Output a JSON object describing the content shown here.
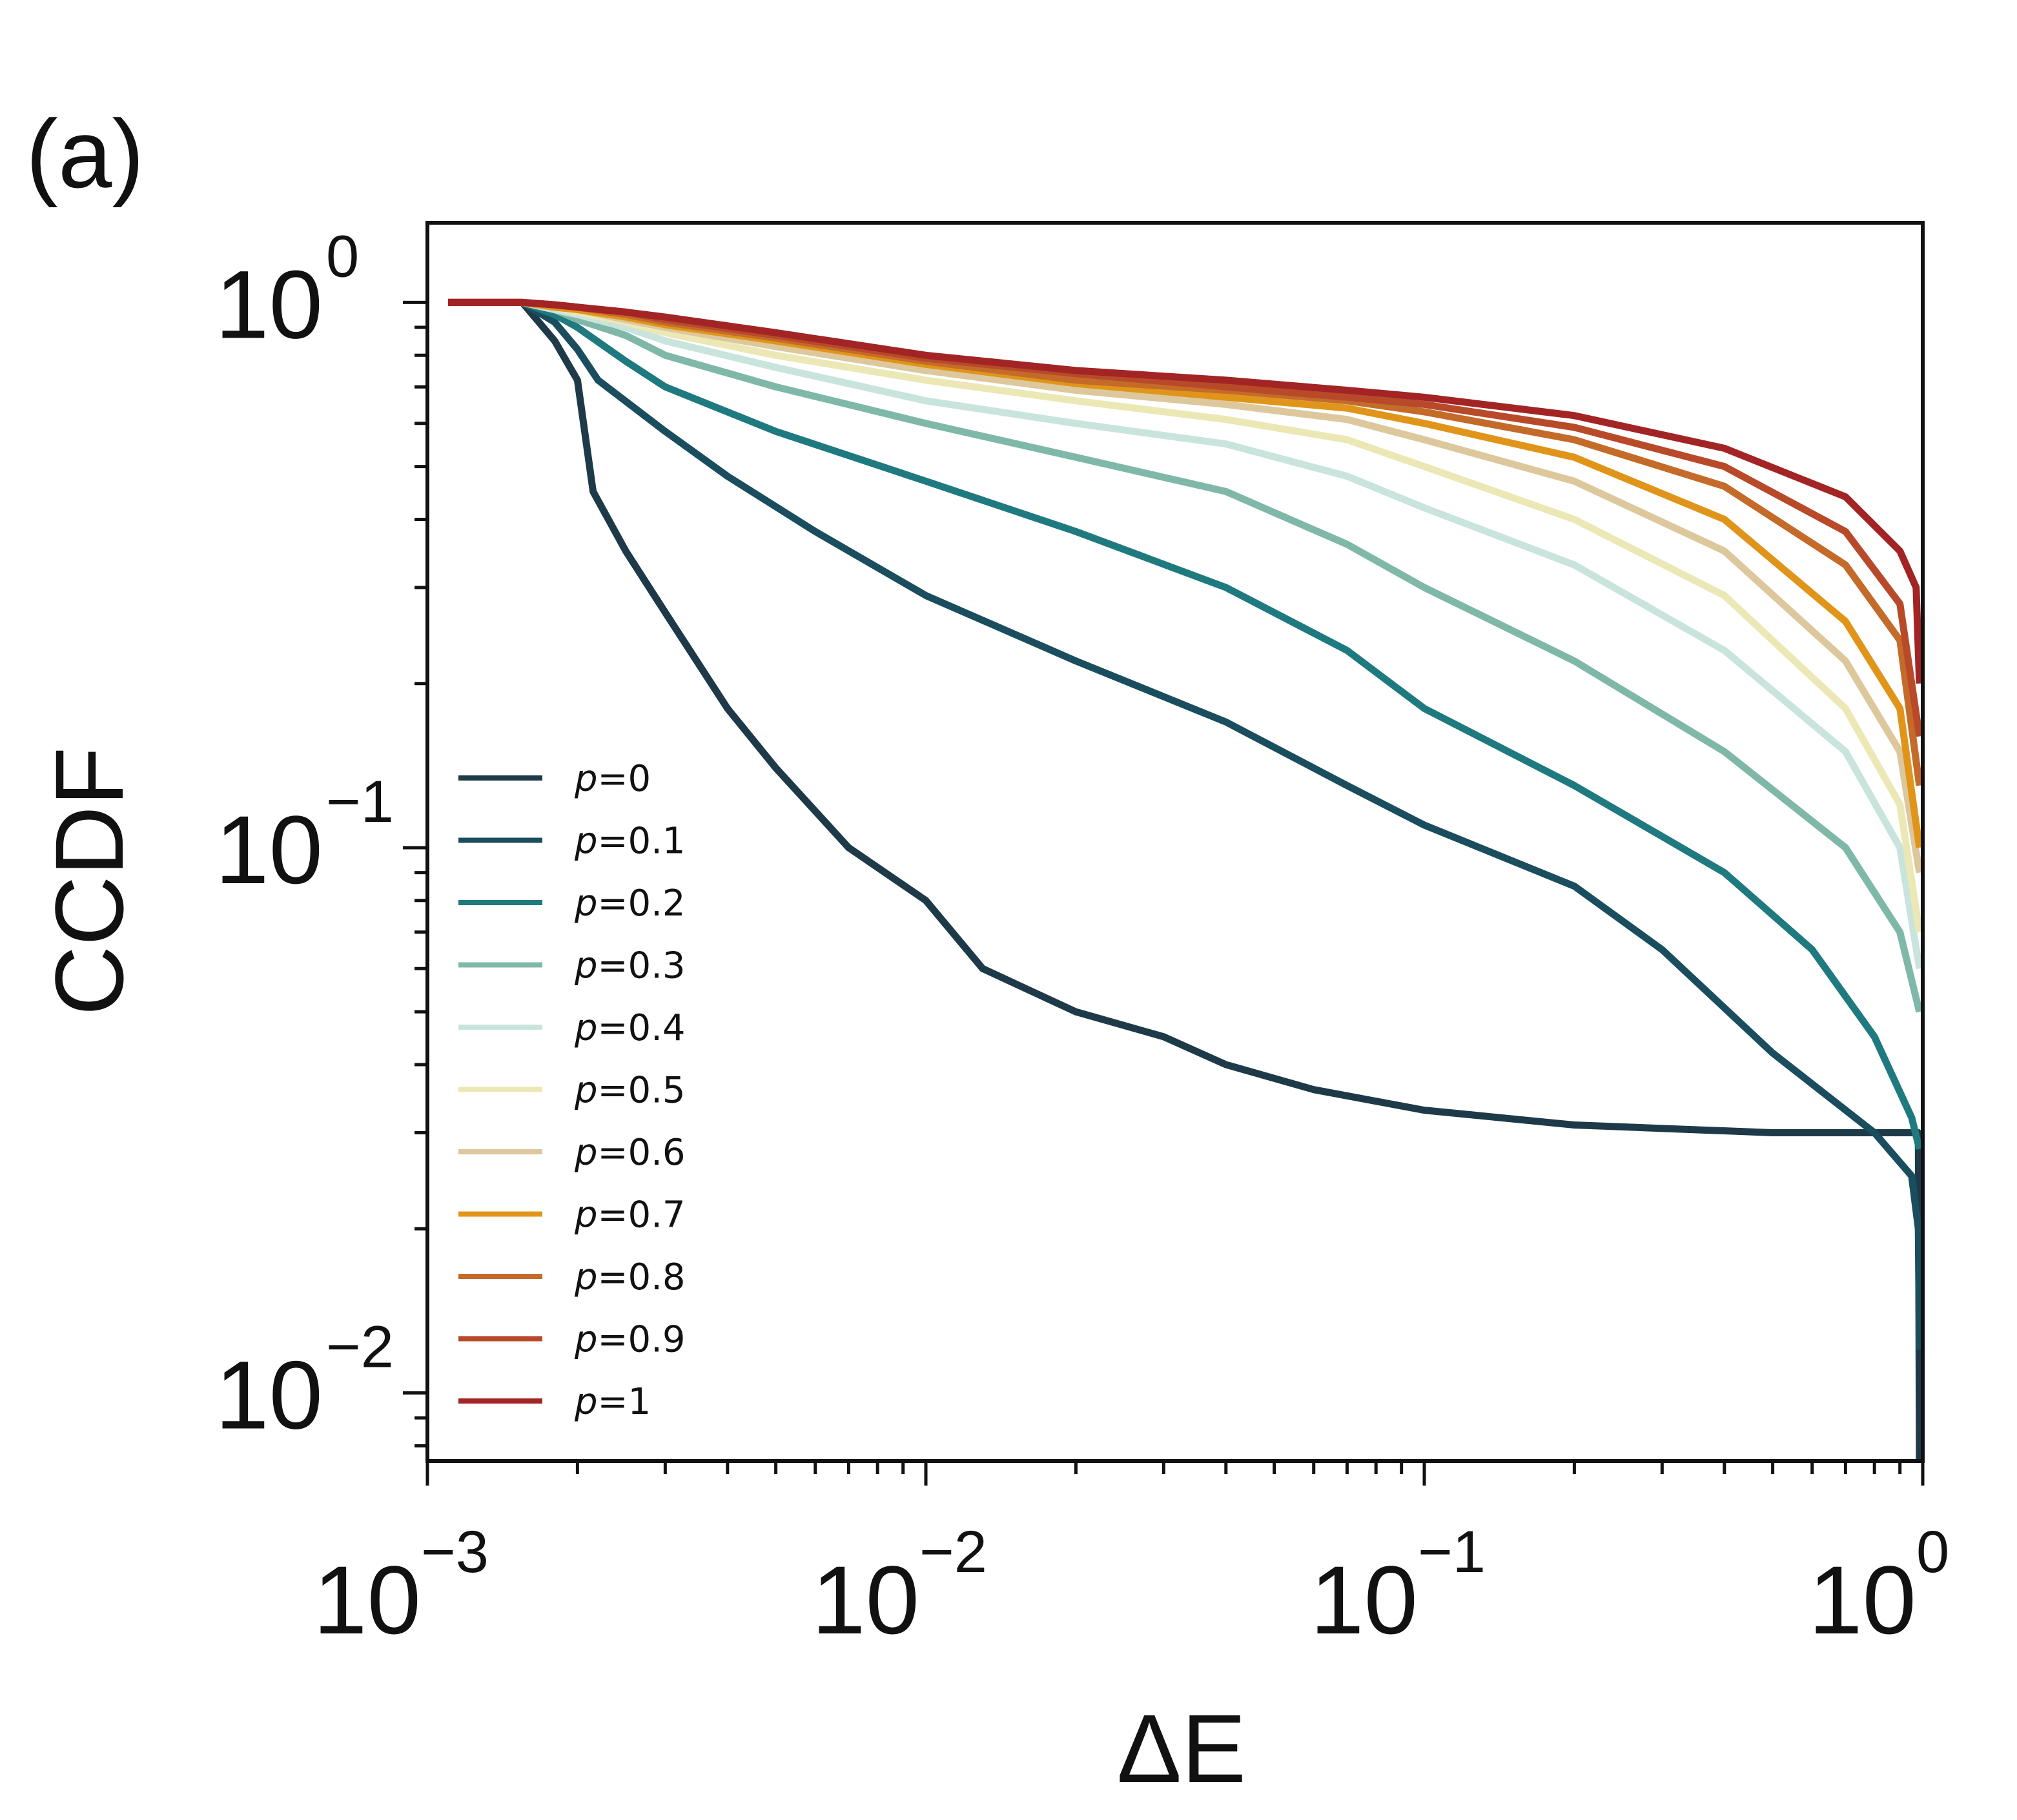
{
  "panel_label": "(a)",
  "chart_data": {
    "type": "line",
    "xlabel": "ΔE",
    "ylabel": "CCDF",
    "xscale": "log",
    "yscale": "log",
    "xlim": [
      0.001,
      1.0
    ],
    "ylim": [
      0.0075,
      1.4
    ],
    "legend_position": "lower-left",
    "grid": false,
    "x_ticks": [
      {
        "base": "10",
        "exp": "−3",
        "value": 0.001
      },
      {
        "base": "10",
        "exp": "−2",
        "value": 0.01
      },
      {
        "base": "10",
        "exp": "−1",
        "value": 0.1
      },
      {
        "base": "10",
        "exp": "0",
        "value": 1
      }
    ],
    "y_ticks": [
      {
        "base": "10",
        "exp": "0",
        "value": 1
      },
      {
        "base": "10",
        "exp": "−1",
        "value": 0.1
      },
      {
        "base": "10",
        "exp": "−2",
        "value": 0.01
      }
    ],
    "series": [
      {
        "name": "p=0",
        "p_label": "p",
        "p_value": "=0",
        "color": "#1e3a48",
        "points": [
          [
            0.0011,
            1.0
          ],
          [
            0.00155,
            1.0
          ],
          [
            0.0018,
            0.85
          ],
          [
            0.002,
            0.72
          ],
          [
            0.00215,
            0.45
          ],
          [
            0.0025,
            0.35
          ],
          [
            0.003,
            0.27
          ],
          [
            0.004,
            0.18
          ],
          [
            0.005,
            0.14
          ],
          [
            0.007,
            0.1
          ],
          [
            0.01,
            0.08
          ],
          [
            0.013,
            0.06
          ],
          [
            0.02,
            0.05
          ],
          [
            0.03,
            0.045
          ],
          [
            0.04,
            0.04
          ],
          [
            0.06,
            0.036
          ],
          [
            0.1,
            0.033
          ],
          [
            0.2,
            0.031
          ],
          [
            0.5,
            0.03
          ],
          [
            0.98,
            0.03
          ],
          [
            0.985,
            0.0075
          ]
        ]
      },
      {
        "name": "p=0.1",
        "p_label": "p",
        "p_value": "=0.1",
        "color": "#1a4e5e",
        "points": [
          [
            0.0011,
            1.0
          ],
          [
            0.00155,
            1.0
          ],
          [
            0.0018,
            0.92
          ],
          [
            0.002,
            0.82
          ],
          [
            0.0022,
            0.72
          ],
          [
            0.003,
            0.58
          ],
          [
            0.004,
            0.48
          ],
          [
            0.006,
            0.38
          ],
          [
            0.01,
            0.29
          ],
          [
            0.02,
            0.22
          ],
          [
            0.04,
            0.17
          ],
          [
            0.07,
            0.13
          ],
          [
            0.1,
            0.11
          ],
          [
            0.2,
            0.085
          ],
          [
            0.3,
            0.065
          ],
          [
            0.5,
            0.042
          ],
          [
            0.8,
            0.03
          ],
          [
            0.95,
            0.025
          ],
          [
            0.98,
            0.02
          ],
          [
            0.985,
            0.012
          ]
        ]
      },
      {
        "name": "p=0.2",
        "p_label": "p",
        "p_value": "=0.2",
        "color": "#1f7a80",
        "points": [
          [
            0.0011,
            1.0
          ],
          [
            0.00155,
            1.0
          ],
          [
            0.0018,
            0.95
          ],
          [
            0.002,
            0.9
          ],
          [
            0.0025,
            0.78
          ],
          [
            0.003,
            0.7
          ],
          [
            0.005,
            0.58
          ],
          [
            0.01,
            0.47
          ],
          [
            0.02,
            0.38
          ],
          [
            0.04,
            0.3
          ],
          [
            0.07,
            0.23
          ],
          [
            0.1,
            0.18
          ],
          [
            0.2,
            0.13
          ],
          [
            0.4,
            0.09
          ],
          [
            0.6,
            0.065
          ],
          [
            0.8,
            0.045
          ],
          [
            0.95,
            0.032
          ],
          [
            0.985,
            0.028
          ]
        ]
      },
      {
        "name": "p=0.3",
        "p_label": "p",
        "p_value": "=0.3",
        "color": "#7fb8a8",
        "points": [
          [
            0.0011,
            1.0
          ],
          [
            0.00155,
            1.0
          ],
          [
            0.0018,
            0.97
          ],
          [
            0.002,
            0.93
          ],
          [
            0.0025,
            0.87
          ],
          [
            0.003,
            0.8
          ],
          [
            0.005,
            0.7
          ],
          [
            0.01,
            0.6
          ],
          [
            0.02,
            0.52
          ],
          [
            0.04,
            0.45
          ],
          [
            0.07,
            0.36
          ],
          [
            0.1,
            0.3
          ],
          [
            0.2,
            0.22
          ],
          [
            0.4,
            0.15
          ],
          [
            0.7,
            0.1
          ],
          [
            0.9,
            0.07
          ],
          [
            0.985,
            0.05
          ]
        ]
      },
      {
        "name": "p=0.4",
        "p_label": "p",
        "p_value": "=0.4",
        "color": "#c9e4dd",
        "points": [
          [
            0.0011,
            1.0
          ],
          [
            0.00155,
            1.0
          ],
          [
            0.0018,
            0.97
          ],
          [
            0.002,
            0.95
          ],
          [
            0.0025,
            0.9
          ],
          [
            0.003,
            0.85
          ],
          [
            0.005,
            0.76
          ],
          [
            0.01,
            0.66
          ],
          [
            0.02,
            0.6
          ],
          [
            0.04,
            0.55
          ],
          [
            0.07,
            0.48
          ],
          [
            0.1,
            0.42
          ],
          [
            0.2,
            0.33
          ],
          [
            0.4,
            0.23
          ],
          [
            0.7,
            0.15
          ],
          [
            0.9,
            0.1
          ],
          [
            0.985,
            0.06
          ]
        ]
      },
      {
        "name": "p=0.5",
        "p_label": "p",
        "p_value": "=0.5",
        "color": "#ece8b5",
        "points": [
          [
            0.0011,
            1.0
          ],
          [
            0.00155,
            1.0
          ],
          [
            0.0018,
            0.98
          ],
          [
            0.002,
            0.96
          ],
          [
            0.0025,
            0.92
          ],
          [
            0.003,
            0.88
          ],
          [
            0.005,
            0.8
          ],
          [
            0.01,
            0.72
          ],
          [
            0.02,
            0.66
          ],
          [
            0.04,
            0.61
          ],
          [
            0.07,
            0.56
          ],
          [
            0.1,
            0.5
          ],
          [
            0.2,
            0.4
          ],
          [
            0.4,
            0.29
          ],
          [
            0.7,
            0.18
          ],
          [
            0.9,
            0.12
          ],
          [
            0.985,
            0.07
          ]
        ]
      },
      {
        "name": "p=0.6",
        "p_label": "p",
        "p_value": "=0.6",
        "color": "#dcc89c",
        "points": [
          [
            0.0011,
            1.0
          ],
          [
            0.00155,
            1.0
          ],
          [
            0.0018,
            0.98
          ],
          [
            0.002,
            0.97
          ],
          [
            0.0025,
            0.93
          ],
          [
            0.003,
            0.9
          ],
          [
            0.005,
            0.83
          ],
          [
            0.01,
            0.75
          ],
          [
            0.02,
            0.69
          ],
          [
            0.04,
            0.65
          ],
          [
            0.07,
            0.61
          ],
          [
            0.1,
            0.56
          ],
          [
            0.2,
            0.47
          ],
          [
            0.4,
            0.35
          ],
          [
            0.7,
            0.22
          ],
          [
            0.9,
            0.15
          ],
          [
            0.985,
            0.09
          ]
        ]
      },
      {
        "name": "p=0.7",
        "p_label": "p",
        "p_value": "=0.7",
        "color": "#e0951a",
        "points": [
          [
            0.0011,
            1.0
          ],
          [
            0.00155,
            1.0
          ],
          [
            0.0018,
            0.98
          ],
          [
            0.002,
            0.97
          ],
          [
            0.0025,
            0.94
          ],
          [
            0.003,
            0.91
          ],
          [
            0.005,
            0.85
          ],
          [
            0.01,
            0.77
          ],
          [
            0.02,
            0.71
          ],
          [
            0.04,
            0.67
          ],
          [
            0.07,
            0.64
          ],
          [
            0.1,
            0.6
          ],
          [
            0.2,
            0.52
          ],
          [
            0.4,
            0.4
          ],
          [
            0.7,
            0.26
          ],
          [
            0.9,
            0.18
          ],
          [
            0.985,
            0.1
          ]
        ]
      },
      {
        "name": "p=0.8",
        "p_label": "p",
        "p_value": "=0.8",
        "color": "#c46b2a",
        "points": [
          [
            0.0011,
            1.0
          ],
          [
            0.00155,
            1.0
          ],
          [
            0.0018,
            0.99
          ],
          [
            0.002,
            0.98
          ],
          [
            0.0025,
            0.95
          ],
          [
            0.003,
            0.92
          ],
          [
            0.005,
            0.86
          ],
          [
            0.01,
            0.78
          ],
          [
            0.02,
            0.72
          ],
          [
            0.04,
            0.69
          ],
          [
            0.07,
            0.66
          ],
          [
            0.1,
            0.63
          ],
          [
            0.2,
            0.56
          ],
          [
            0.4,
            0.46
          ],
          [
            0.7,
            0.33
          ],
          [
            0.9,
            0.24
          ],
          [
            0.985,
            0.13
          ]
        ]
      },
      {
        "name": "p=0.9",
        "p_label": "p",
        "p_value": "=0.9",
        "color": "#b84a2a",
        "points": [
          [
            0.0011,
            1.0
          ],
          [
            0.00155,
            1.0
          ],
          [
            0.0018,
            0.99
          ],
          [
            0.002,
            0.98
          ],
          [
            0.0025,
            0.96
          ],
          [
            0.003,
            0.93
          ],
          [
            0.005,
            0.87
          ],
          [
            0.01,
            0.79
          ],
          [
            0.02,
            0.74
          ],
          [
            0.04,
            0.7
          ],
          [
            0.07,
            0.67
          ],
          [
            0.1,
            0.65
          ],
          [
            0.2,
            0.59
          ],
          [
            0.4,
            0.5
          ],
          [
            0.7,
            0.38
          ],
          [
            0.9,
            0.28
          ],
          [
            0.985,
            0.16
          ]
        ]
      },
      {
        "name": "p=1",
        "p_label": "p",
        "p_value": "=1",
        "color": "#a32424",
        "points": [
          [
            0.0011,
            1.0
          ],
          [
            0.00155,
            1.0
          ],
          [
            0.0018,
            0.99
          ],
          [
            0.002,
            0.98
          ],
          [
            0.0025,
            0.96
          ],
          [
            0.003,
            0.94
          ],
          [
            0.005,
            0.88
          ],
          [
            0.01,
            0.8
          ],
          [
            0.02,
            0.75
          ],
          [
            0.04,
            0.72
          ],
          [
            0.07,
            0.69
          ],
          [
            0.1,
            0.67
          ],
          [
            0.2,
            0.62
          ],
          [
            0.4,
            0.54
          ],
          [
            0.7,
            0.44
          ],
          [
            0.9,
            0.35
          ],
          [
            0.97,
            0.3
          ],
          [
            0.985,
            0.2
          ]
        ]
      }
    ]
  }
}
